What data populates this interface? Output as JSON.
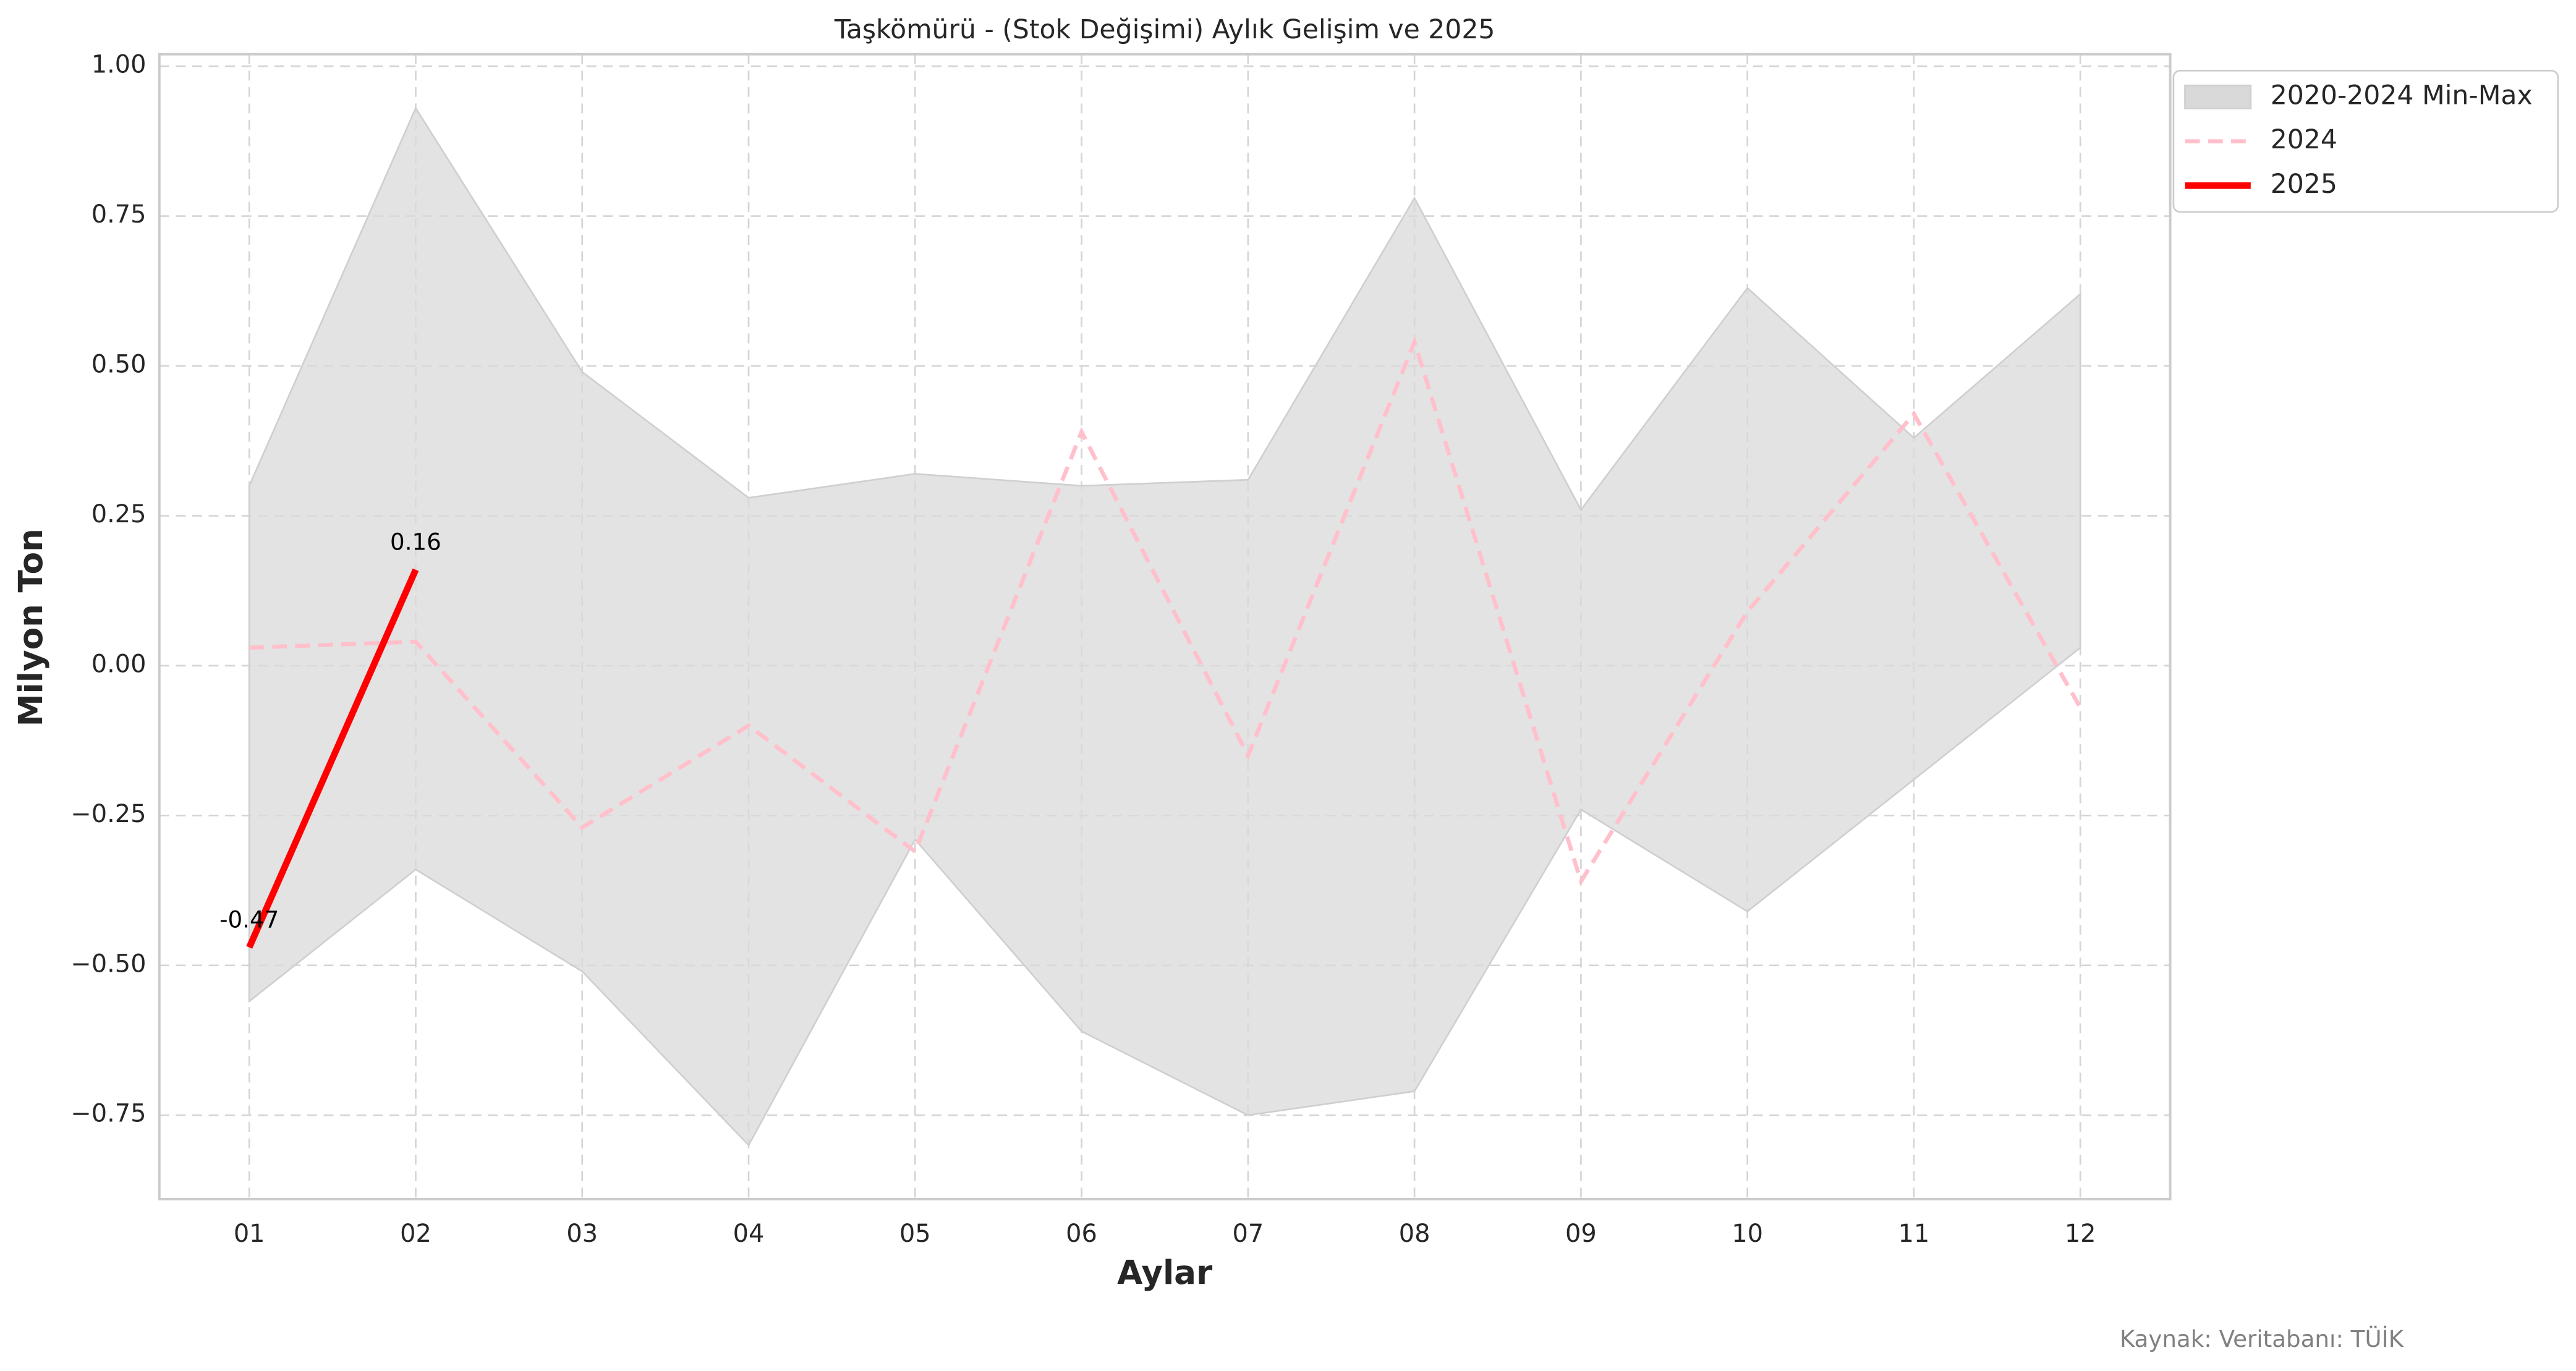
{
  "chart_data": {
    "type": "line",
    "title": "Taşkömürü - (Stok Değişimi) Aylık Gelişim ve 2025",
    "x_label": "Aylar",
    "y_label": "Milyon Ton",
    "source": "Kaynak: Veritabanı: TÜİK",
    "categories": [
      "01",
      "02",
      "03",
      "04",
      "05",
      "06",
      "07",
      "08",
      "09",
      "10",
      "11",
      "12"
    ],
    "band": {
      "name": "2020-2024 Min-Max",
      "color": "#d9d9d9",
      "upper": [
        0.3,
        0.93,
        0.49,
        0.28,
        0.32,
        0.3,
        0.31,
        0.78,
        0.26,
        0.63,
        0.38,
        0.62
      ],
      "lower": [
        -0.56,
        -0.34,
        -0.51,
        -0.8,
        -0.29,
        -0.61,
        -0.75,
        -0.71,
        -0.24,
        -0.41,
        -0.19,
        0.03
      ]
    },
    "series": [
      {
        "name": "2024",
        "color": "#ffc0cb",
        "dashed": true,
        "values": [
          0.03,
          0.04,
          -0.27,
          -0.1,
          -0.31,
          0.39,
          -0.15,
          0.54,
          -0.36,
          0.09,
          0.42,
          -0.07
        ]
      },
      {
        "name": "2025",
        "color": "#ff0000",
        "dashed": false,
        "show_labels": true,
        "values": [
          -0.47,
          0.16,
          null,
          null,
          null,
          null,
          null,
          null,
          null,
          null,
          null,
          null
        ]
      }
    ],
    "ylim": [
      -0.89,
      1.02
    ],
    "yticks": [
      {
        "value": -0.75,
        "label": "−0.75"
      },
      {
        "value": -0.5,
        "label": "−0.50"
      },
      {
        "value": -0.25,
        "label": "−0.25"
      },
      {
        "value": 0,
        "label": "0.00"
      },
      {
        "value": 0.25,
        "label": "0.25"
      },
      {
        "value": 0.5,
        "label": "0.50"
      },
      {
        "value": 0.75,
        "label": "0.75"
      },
      {
        "value": 1,
        "label": "1.00"
      }
    ],
    "grid": true,
    "legend": "upper right outside"
  }
}
